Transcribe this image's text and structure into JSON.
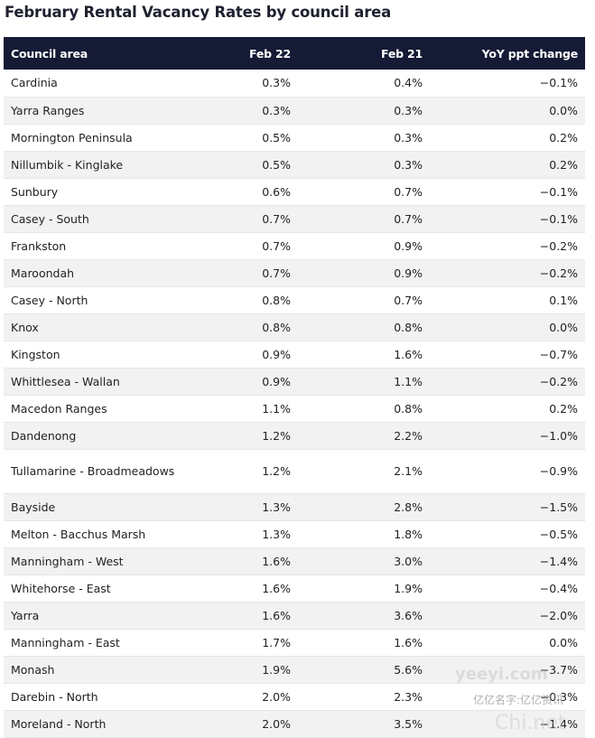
{
  "chart_data": {
    "type": "table",
    "title": "February Rental Vacancy Rates by council area",
    "columns": [
      "Council area",
      "Feb 22",
      "Feb 21",
      "YoY ppt change"
    ],
    "rows": [
      [
        "Cardinia",
        "0.3%",
        "0.4%",
        "−0.1%"
      ],
      [
        "Yarra Ranges",
        "0.3%",
        "0.3%",
        "0.0%"
      ],
      [
        "Mornington Peninsula",
        "0.5%",
        "0.3%",
        "0.2%"
      ],
      [
        "Nillumbik - Kinglake",
        "0.5%",
        "0.3%",
        "0.2%"
      ],
      [
        "Sunbury",
        "0.6%",
        "0.7%",
        "−0.1%"
      ],
      [
        "Casey - South",
        "0.7%",
        "0.7%",
        "−0.1%"
      ],
      [
        "Frankston",
        "0.7%",
        "0.9%",
        "−0.2%"
      ],
      [
        "Maroondah",
        "0.7%",
        "0.9%",
        "−0.2%"
      ],
      [
        "Casey - North",
        "0.8%",
        "0.7%",
        "0.1%"
      ],
      [
        "Knox",
        "0.8%",
        "0.8%",
        "0.0%"
      ],
      [
        "Kingston",
        "0.9%",
        "1.6%",
        "−0.7%"
      ],
      [
        "Whittlesea - Wallan",
        "0.9%",
        "1.1%",
        "−0.2%"
      ],
      [
        "Macedon Ranges",
        "1.1%",
        "0.8%",
        "0.2%"
      ],
      [
        "Dandenong",
        "1.2%",
        "2.2%",
        "−1.0%"
      ],
      [
        "Tullamarine - Broadmeadows",
        "1.2%",
        "2.1%",
        "−0.9%"
      ],
      [
        "Bayside",
        "1.3%",
        "2.8%",
        "−1.5%"
      ],
      [
        "Melton - Bacchus Marsh",
        "1.3%",
        "1.8%",
        "−0.5%"
      ],
      [
        "Manningham - West",
        "1.6%",
        "3.0%",
        "−1.4%"
      ],
      [
        "Whitehorse - East",
        "1.6%",
        "1.9%",
        "−0.4%"
      ],
      [
        "Yarra",
        "1.6%",
        "3.6%",
        "−2.0%"
      ],
      [
        "Manningham - East",
        "1.7%",
        "1.6%",
        "0.0%"
      ],
      [
        "Monash",
        "1.9%",
        "5.6%",
        "−3.7%"
      ],
      [
        "Darebin - North",
        "2.0%",
        "2.3%",
        "−0.3%"
      ],
      [
        "Moreland - North",
        "2.0%",
        "3.5%",
        "−1.4%"
      ]
    ]
  },
  "colors": {
    "header_background": "#151a35",
    "header_text": "#ffffff",
    "stripe": "#f2f2f2"
  },
  "watermark": {
    "logo": "yeeyi.com",
    "text": "亿亿名字:亿亿资讯",
    "domain": "Chi.net"
  }
}
